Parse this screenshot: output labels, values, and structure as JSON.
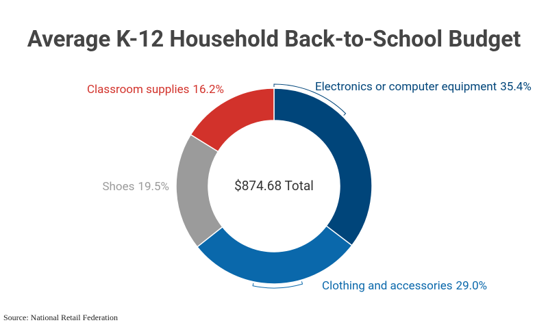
{
  "chart_data": {
    "type": "donut",
    "title": "Average K-12 Household Back-to-School Budget",
    "center_label": "$874.68 Total",
    "source": "Source: National Retail Federation",
    "categories": [
      "Electronics or computer equipment",
      "Clothing and accessories",
      "Shoes",
      "Classroom supplies"
    ],
    "values": [
      35.4,
      29.0,
      19.5,
      16.2
    ],
    "value_labels": [
      "35.4%",
      "29.0%",
      "19.5%",
      "16.2%"
    ],
    "colors": [
      "#00457a",
      "#0a68ab",
      "#9b9b9b",
      "#d2322b"
    ]
  }
}
